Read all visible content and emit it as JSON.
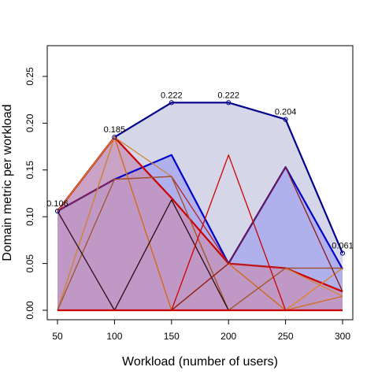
{
  "chart_data": {
    "type": "area",
    "xlabel": "Workload (number of users)",
    "ylabel": "Domain metric per workload",
    "x": [
      50,
      100,
      150,
      200,
      250,
      300
    ],
    "xlim": [
      50,
      300
    ],
    "ylim": [
      0,
      0.27
    ],
    "x_ticks": [
      "50",
      "100",
      "150",
      "200",
      "250",
      "300"
    ],
    "y_ticks": [
      "0.00",
      "0.05",
      "0.10",
      "0.15",
      "0.20",
      "0.25"
    ],
    "grid": false,
    "legend": "none",
    "series": [
      {
        "values": [
          0.106,
          0.185,
          0.222,
          0.222,
          0.204,
          0.061
        ],
        "stroke": "#00008B",
        "fill": "#C8C8E2",
        "point_labels": [
          "0.106",
          "0.185",
          "0.222",
          "0.222",
          "0.204",
          "0.061"
        ],
        "markers": true
      },
      {
        "values": [
          0.106,
          0.14,
          0.166,
          0.05,
          0.153,
          0.044
        ],
        "stroke": "#0000CD",
        "fill": "#A3A3EE"
      },
      {
        "values": [
          0.106,
          0.185,
          0.12,
          0.05,
          0.045,
          0.02
        ],
        "stroke": "#CC0000",
        "fill": "#C590B8"
      },
      {
        "values": [
          0.106,
          0.14,
          0.143,
          0.05,
          0.045,
          0.045
        ],
        "stroke": "#B22222",
        "fill": "none"
      },
      {
        "values": [
          0.106,
          0.185,
          0.0,
          0.05,
          0.0,
          0.045
        ],
        "stroke": "#E08020",
        "fill": "none"
      },
      {
        "values": [
          0.0,
          0.185,
          0.0,
          0.05,
          0.0,
          0.015
        ],
        "stroke": "#D2691E",
        "fill": "none"
      },
      {
        "values": [
          0.0,
          0.185,
          0.143,
          0.0,
          0.045,
          0.015
        ],
        "stroke": "#CD853F",
        "fill": "none"
      },
      {
        "values": [
          0.0,
          0.14,
          0.143,
          0.0,
          0.045,
          0.045
        ],
        "stroke": "#A0522D",
        "fill": "none"
      },
      {
        "values": [
          0.106,
          0.0,
          0.118,
          0.0,
          0.0,
          0.0
        ],
        "stroke": "#2B0A14",
        "fill": "none"
      },
      {
        "values": [
          0.0,
          0.0,
          0.0,
          0.166,
          0.0,
          0.0
        ],
        "stroke": "#CC0000",
        "fill": "none"
      },
      {
        "values": [
          0.0,
          0.0,
          0.0,
          0.05,
          0.153,
          0.02
        ],
        "stroke": "#8B1A1A",
        "fill": "none"
      }
    ]
  }
}
